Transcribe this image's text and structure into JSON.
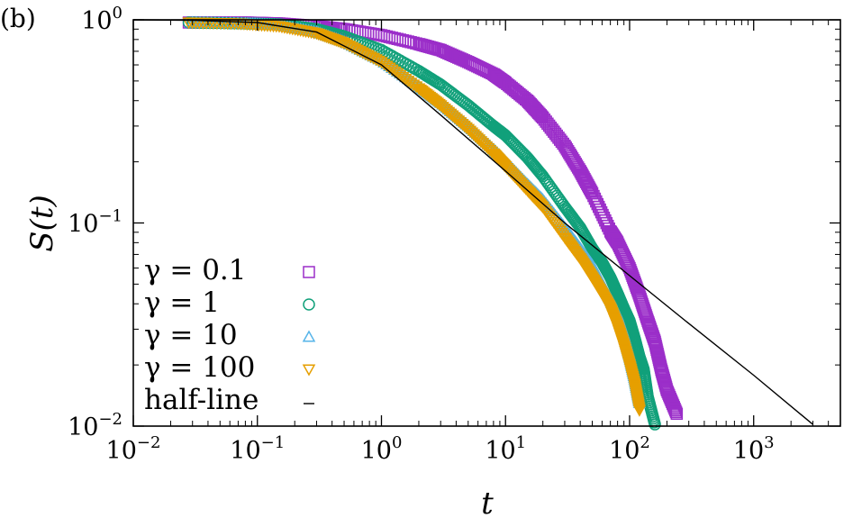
{
  "panel_label": "(b)",
  "chart_data": {
    "type": "scatter",
    "xscale": "log",
    "yscale": "log",
    "xlabel": "t",
    "ylabel": "S(t)",
    "xlim": [
      0.01,
      5000
    ],
    "ylim": [
      0.01,
      1.0
    ],
    "x_ticks": [
      {
        "value": 0.01,
        "base": "10",
        "exp": "−2"
      },
      {
        "value": 0.1,
        "base": "10",
        "exp": "−1"
      },
      {
        "value": 1,
        "base": "10",
        "exp": "0"
      },
      {
        "value": 10,
        "base": "10",
        "exp": "1"
      },
      {
        "value": 100,
        "base": "10",
        "exp": "2"
      },
      {
        "value": 1000,
        "base": "10",
        "exp": "3"
      }
    ],
    "y_ticks": [
      {
        "value": 0.01,
        "base": "10",
        "exp": "−2"
      },
      {
        "value": 0.1,
        "base": "10",
        "exp": "−1"
      },
      {
        "value": 1,
        "base": "10",
        "exp": "0"
      }
    ],
    "series": [
      {
        "name": "γ = 0.1",
        "marker": "square",
        "color": "#9b2ec9",
        "x": [
          0.028,
          0.08,
          0.15,
          0.3,
          0.5,
          1,
          2,
          3,
          5,
          8,
          10,
          15,
          20,
          30,
          40,
          50,
          70,
          80,
          100,
          120,
          140,
          160,
          180,
          200,
          240
        ],
        "y": [
          0.97,
          0.97,
          0.96,
          0.93,
          0.9,
          0.84,
          0.76,
          0.71,
          0.62,
          0.54,
          0.49,
          0.4,
          0.33,
          0.24,
          0.18,
          0.14,
          0.091,
          0.08,
          0.06,
          0.044,
          0.033,
          0.026,
          0.019,
          0.015,
          0.0115
        ]
      },
      {
        "name": "γ = 1",
        "marker": "circle",
        "color": "#11a07a",
        "x": [
          0.028,
          0.08,
          0.15,
          0.3,
          0.5,
          1,
          2,
          3,
          5,
          8,
          10,
          15,
          20,
          30,
          40,
          50,
          60,
          70,
          80,
          90,
          100,
          110,
          120,
          130,
          140,
          160
        ],
        "y": [
          0.97,
          0.96,
          0.95,
          0.9,
          0.83,
          0.71,
          0.56,
          0.48,
          0.38,
          0.3,
          0.27,
          0.21,
          0.17,
          0.12,
          0.095,
          0.075,
          0.064,
          0.054,
          0.045,
          0.038,
          0.033,
          0.027,
          0.022,
          0.019,
          0.014,
          0.0102
        ]
      },
      {
        "name": "γ = 10",
        "marker": "triangle-up",
        "color": "#56b4e9",
        "x": [
          0.03,
          0.08,
          0.15,
          0.3,
          0.5,
          1,
          2,
          3,
          5,
          8,
          10,
          15,
          20,
          30,
          40,
          50,
          60,
          70,
          80,
          90,
          100,
          110,
          120
        ],
        "y": [
          0.97,
          0.96,
          0.94,
          0.87,
          0.78,
          0.63,
          0.47,
          0.39,
          0.3,
          0.23,
          0.2,
          0.155,
          0.13,
          0.095,
          0.075,
          0.062,
          0.05,
          0.042,
          0.035,
          0.028,
          0.022,
          0.017,
          0.013
        ]
      },
      {
        "name": "γ = 100",
        "marker": "triangle-down",
        "color": "#e69f00",
        "x": [
          0.028,
          0.07,
          0.15,
          0.3,
          0.5,
          1,
          2,
          3,
          5,
          8,
          10,
          15,
          20,
          30,
          40,
          50,
          60,
          70,
          80,
          90,
          100,
          110,
          120
        ],
        "y": [
          0.97,
          0.96,
          0.93,
          0.86,
          0.77,
          0.62,
          0.46,
          0.38,
          0.29,
          0.22,
          0.19,
          0.145,
          0.12,
          0.085,
          0.067,
          0.054,
          0.045,
          0.038,
          0.031,
          0.025,
          0.02,
          0.016,
          0.012
        ]
      },
      {
        "name": "half-line",
        "marker": "line",
        "color": "#000000",
        "x": [
          0.01,
          0.03,
          0.1,
          0.3,
          1,
          3,
          10,
          30,
          100,
          300,
          1000,
          3000
        ],
        "y": [
          1.0,
          0.995,
          0.97,
          0.87,
          0.6,
          0.34,
          0.18,
          0.1,
          0.055,
          0.032,
          0.0178,
          0.0102
        ]
      }
    ],
    "legend_position": "bottom-left"
  }
}
